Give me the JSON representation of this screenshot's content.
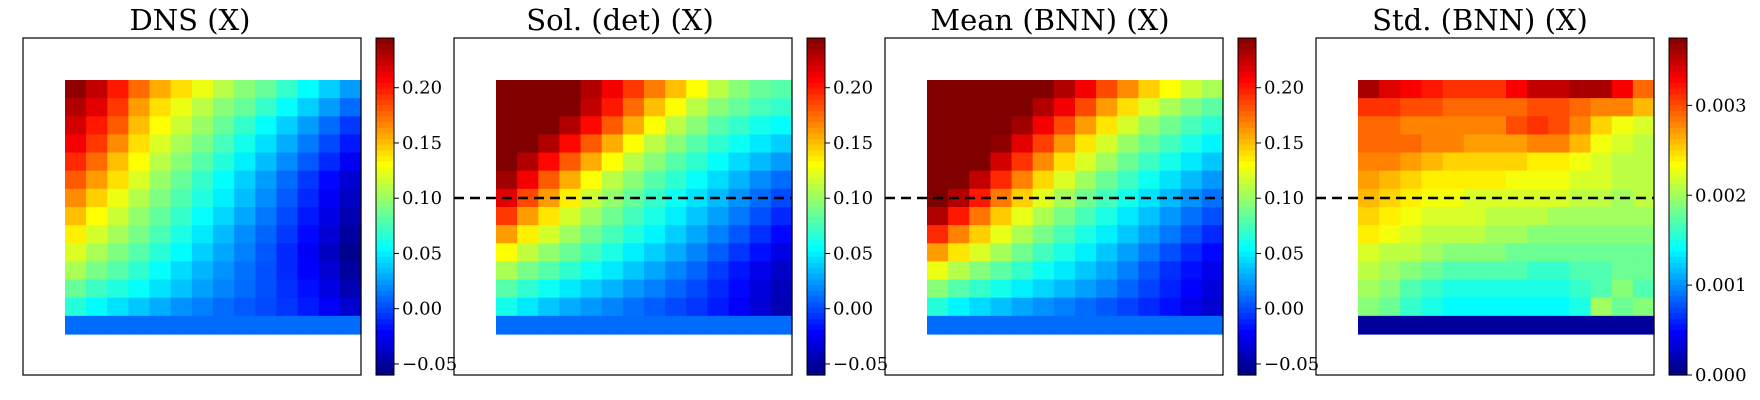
{
  "chart_data": [
    {
      "type": "heatmap",
      "title": "DNS (X)",
      "colormap": "jet",
      "colorbar": {
        "min": -0.06,
        "max": 0.245,
        "ticks": [
          -0.05,
          0.0,
          0.05,
          0.1,
          0.15,
          0.2
        ],
        "tick_labels": [
          "−0.05",
          "0.00",
          "0.05",
          "0.10",
          "0.15",
          "0.20"
        ]
      },
      "dashed_line": false,
      "grid": [
        [
          0.24,
          0.225,
          0.2,
          0.175,
          0.155,
          0.14,
          0.125,
          0.11,
          0.095,
          0.085,
          0.07,
          0.055,
          0.04,
          0.025
        ],
        [
          0.23,
          0.215,
          0.19,
          0.16,
          0.14,
          0.125,
          0.11,
          0.095,
          0.085,
          0.07,
          0.055,
          0.04,
          0.025,
          0.01
        ],
        [
          0.22,
          0.2,
          0.18,
          0.15,
          0.13,
          0.115,
          0.1,
          0.085,
          0.07,
          0.055,
          0.04,
          0.025,
          0.01,
          -0.005
        ],
        [
          0.21,
          0.19,
          0.165,
          0.14,
          0.12,
          0.105,
          0.09,
          0.075,
          0.06,
          0.045,
          0.03,
          0.015,
          0.0,
          -0.015
        ],
        [
          0.195,
          0.175,
          0.15,
          0.13,
          0.11,
          0.095,
          0.08,
          0.065,
          0.05,
          0.035,
          0.02,
          0.005,
          -0.01,
          -0.025
        ],
        [
          0.18,
          0.16,
          0.14,
          0.12,
          0.1,
          0.085,
          0.07,
          0.055,
          0.04,
          0.025,
          0.01,
          -0.005,
          -0.02,
          -0.035
        ],
        [
          0.165,
          0.145,
          0.125,
          0.108,
          0.092,
          0.078,
          0.064,
          0.05,
          0.035,
          0.02,
          0.005,
          -0.01,
          -0.025,
          -0.04
        ],
        [
          0.15,
          0.13,
          0.115,
          0.098,
          0.084,
          0.07,
          0.056,
          0.042,
          0.028,
          0.014,
          0.0,
          -0.015,
          -0.03,
          -0.045
        ],
        [
          0.135,
          0.118,
          0.104,
          0.09,
          0.076,
          0.062,
          0.048,
          0.034,
          0.02,
          0.008,
          -0.005,
          -0.02,
          -0.035,
          -0.05
        ],
        [
          0.12,
          0.105,
          0.092,
          0.08,
          0.066,
          0.054,
          0.04,
          0.028,
          0.016,
          0.004,
          -0.01,
          -0.025,
          -0.04,
          -0.055
        ],
        [
          0.105,
          0.09,
          0.08,
          0.068,
          0.056,
          0.044,
          0.032,
          0.022,
          0.012,
          0.002,
          -0.01,
          -0.022,
          -0.035,
          -0.05
        ],
        [
          0.085,
          0.072,
          0.064,
          0.056,
          0.046,
          0.036,
          0.026,
          0.018,
          0.01,
          0.002,
          -0.008,
          -0.018,
          -0.03,
          -0.045
        ],
        [
          0.065,
          0.054,
          0.046,
          0.038,
          0.03,
          0.022,
          0.016,
          0.01,
          0.005,
          0.0,
          -0.006,
          -0.014,
          -0.024,
          -0.036
        ],
        [
          0.01,
          0.01,
          0.01,
          0.01,
          0.01,
          0.01,
          0.01,
          0.01,
          0.01,
          0.01,
          0.01,
          0.01,
          0.01,
          0.01
        ]
      ]
    },
    {
      "type": "heatmap",
      "title": "Sol. (det) (X)",
      "colormap": "jet",
      "colorbar": {
        "min": -0.06,
        "max": 0.245,
        "ticks": [
          -0.05,
          0.0,
          0.05,
          0.1,
          0.15,
          0.2
        ],
        "tick_labels": [
          "−0.05",
          "0.00",
          "0.05",
          "0.10",
          "0.15",
          "0.20"
        ]
      },
      "dashed_line": true,
      "grid": [
        [
          0.245,
          0.245,
          0.245,
          0.245,
          0.23,
          0.21,
          0.19,
          0.17,
          0.15,
          0.13,
          0.11,
          0.095,
          0.085,
          0.08
        ],
        [
          0.245,
          0.245,
          0.245,
          0.245,
          0.225,
          0.2,
          0.175,
          0.15,
          0.13,
          0.11,
          0.095,
          0.085,
          0.075,
          0.07
        ],
        [
          0.245,
          0.245,
          0.245,
          0.23,
          0.205,
          0.18,
          0.155,
          0.13,
          0.11,
          0.095,
          0.08,
          0.07,
          0.06,
          0.055
        ],
        [
          0.245,
          0.245,
          0.23,
          0.205,
          0.18,
          0.155,
          0.13,
          0.11,
          0.095,
          0.08,
          0.068,
          0.058,
          0.048,
          0.04
        ],
        [
          0.245,
          0.23,
          0.205,
          0.18,
          0.155,
          0.13,
          0.11,
          0.095,
          0.08,
          0.068,
          0.056,
          0.044,
          0.034,
          0.025
        ],
        [
          0.235,
          0.21,
          0.18,
          0.155,
          0.13,
          0.11,
          0.095,
          0.08,
          0.068,
          0.056,
          0.044,
          0.032,
          0.02,
          0.01
        ],
        [
          0.215,
          0.185,
          0.16,
          0.135,
          0.115,
          0.098,
          0.084,
          0.07,
          0.058,
          0.046,
          0.034,
          0.022,
          0.01,
          0.0
        ],
        [
          0.19,
          0.16,
          0.138,
          0.118,
          0.102,
          0.088,
          0.074,
          0.062,
          0.05,
          0.038,
          0.026,
          0.014,
          0.002,
          -0.01
        ],
        [
          0.16,
          0.135,
          0.118,
          0.102,
          0.088,
          0.076,
          0.064,
          0.052,
          0.04,
          0.028,
          0.016,
          0.004,
          -0.008,
          -0.02
        ],
        [
          0.13,
          0.112,
          0.098,
          0.086,
          0.074,
          0.062,
          0.05,
          0.04,
          0.03,
          0.018,
          0.006,
          -0.006,
          -0.018,
          -0.03
        ],
        [
          0.105,
          0.09,
          0.08,
          0.068,
          0.058,
          0.048,
          0.038,
          0.028,
          0.018,
          0.008,
          -0.004,
          -0.016,
          -0.028,
          -0.038
        ],
        [
          0.08,
          0.068,
          0.058,
          0.048,
          0.04,
          0.032,
          0.024,
          0.016,
          0.008,
          0.0,
          -0.01,
          -0.02,
          -0.032,
          -0.042
        ],
        [
          0.06,
          0.048,
          0.038,
          0.03,
          0.024,
          0.018,
          0.012,
          0.006,
          0.0,
          -0.006,
          -0.014,
          -0.024,
          -0.034,
          -0.044
        ],
        [
          0.01,
          0.01,
          0.01,
          0.01,
          0.01,
          0.01,
          0.01,
          0.01,
          0.01,
          0.01,
          0.01,
          0.01,
          0.01,
          0.01
        ]
      ]
    },
    {
      "type": "heatmap",
      "title": "Mean (BNN) (X)",
      "colormap": "jet",
      "colorbar": {
        "min": -0.06,
        "max": 0.245,
        "ticks": [
          -0.05,
          0.0,
          0.05,
          0.1,
          0.15,
          0.2
        ],
        "tick_labels": [
          "−0.05",
          "0.00",
          "0.05",
          "0.10",
          "0.15",
          "0.20"
        ]
      },
      "dashed_line": true,
      "grid": [
        [
          0.245,
          0.245,
          0.245,
          0.245,
          0.245,
          0.245,
          0.23,
          0.21,
          0.185,
          0.165,
          0.145,
          0.13,
          0.115,
          0.105
        ],
        [
          0.245,
          0.245,
          0.245,
          0.245,
          0.245,
          0.23,
          0.21,
          0.185,
          0.16,
          0.14,
          0.12,
          0.105,
          0.092,
          0.082
        ],
        [
          0.245,
          0.245,
          0.245,
          0.245,
          0.235,
          0.21,
          0.185,
          0.16,
          0.138,
          0.118,
          0.1,
          0.088,
          0.076,
          0.066
        ],
        [
          0.245,
          0.245,
          0.245,
          0.24,
          0.215,
          0.188,
          0.162,
          0.138,
          0.118,
          0.1,
          0.086,
          0.074,
          0.062,
          0.052
        ],
        [
          0.245,
          0.245,
          0.245,
          0.22,
          0.192,
          0.165,
          0.14,
          0.12,
          0.102,
          0.086,
          0.072,
          0.06,
          0.048,
          0.038
        ],
        [
          0.245,
          0.245,
          0.225,
          0.195,
          0.168,
          0.142,
          0.12,
          0.102,
          0.086,
          0.072,
          0.058,
          0.046,
          0.034,
          0.024
        ],
        [
          0.245,
          0.23,
          0.2,
          0.17,
          0.145,
          0.122,
          0.104,
          0.088,
          0.074,
          0.06,
          0.046,
          0.034,
          0.022,
          0.012
        ],
        [
          0.23,
          0.2,
          0.172,
          0.146,
          0.124,
          0.106,
          0.09,
          0.076,
          0.062,
          0.048,
          0.036,
          0.024,
          0.012,
          0.002
        ],
        [
          0.195,
          0.168,
          0.145,
          0.124,
          0.106,
          0.09,
          0.076,
          0.062,
          0.05,
          0.038,
          0.026,
          0.014,
          0.002,
          -0.01
        ],
        [
          0.16,
          0.138,
          0.12,
          0.104,
          0.088,
          0.074,
          0.062,
          0.05,
          0.038,
          0.026,
          0.014,
          0.002,
          -0.01,
          -0.02
        ],
        [
          0.125,
          0.108,
          0.094,
          0.082,
          0.07,
          0.058,
          0.048,
          0.038,
          0.028,
          0.016,
          0.004,
          -0.008,
          -0.018,
          -0.028
        ],
        [
          0.095,
          0.08,
          0.07,
          0.06,
          0.05,
          0.042,
          0.034,
          0.026,
          0.018,
          0.008,
          -0.002,
          -0.012,
          -0.022,
          -0.032
        ],
        [
          0.065,
          0.052,
          0.044,
          0.036,
          0.028,
          0.022,
          0.016,
          0.01,
          0.004,
          -0.002,
          -0.01,
          -0.018,
          -0.028,
          -0.036
        ],
        [
          0.01,
          0.01,
          0.01,
          0.01,
          0.01,
          0.01,
          0.01,
          0.01,
          0.01,
          0.01,
          0.01,
          0.01,
          0.01,
          0.01
        ]
      ]
    },
    {
      "type": "heatmap",
      "title": "Std. (BNN) (X)",
      "colormap": "jet",
      "colorbar": {
        "min": 0.0,
        "max": 0.00375,
        "ticks": [
          0.0,
          0.001,
          0.002,
          0.003
        ],
        "tick_labels": [
          "0.000",
          "0.001",
          "0.002",
          "0.003"
        ]
      },
      "dashed_line": true,
      "grid": [
        [
          0.0036,
          0.0034,
          0.0033,
          0.0032,
          0.0031,
          0.0031,
          0.0031,
          0.0033,
          0.0035,
          0.0035,
          0.0036,
          0.0036,
          0.0033,
          0.0029
        ],
        [
          0.0031,
          0.0031,
          0.003,
          0.003,
          0.0029,
          0.0029,
          0.0029,
          0.0029,
          0.003,
          0.003,
          0.0029,
          0.0028,
          0.0028,
          0.0026
        ],
        [
          0.0029,
          0.0029,
          0.0028,
          0.0028,
          0.0028,
          0.0028,
          0.0028,
          0.003,
          0.0031,
          0.003,
          0.0028,
          0.0025,
          0.0023,
          0.0022
        ],
        [
          0.0029,
          0.0029,
          0.0029,
          0.0028,
          0.0028,
          0.0027,
          0.0027,
          0.0027,
          0.0028,
          0.0028,
          0.0026,
          0.0023,
          0.0022,
          0.0021
        ],
        [
          0.0028,
          0.0028,
          0.0027,
          0.0026,
          0.0025,
          0.0025,
          0.0025,
          0.0025,
          0.0024,
          0.0024,
          0.0023,
          0.0022,
          0.0021,
          0.0021
        ],
        [
          0.0027,
          0.0026,
          0.0025,
          0.0024,
          0.0024,
          0.0024,
          0.0024,
          0.0023,
          0.0023,
          0.0023,
          0.0022,
          0.0022,
          0.0021,
          0.0021
        ],
        [
          0.0026,
          0.0025,
          0.0024,
          0.0023,
          0.0023,
          0.0022,
          0.0022,
          0.0022,
          0.0022,
          0.0022,
          0.0021,
          0.0021,
          0.002,
          0.0021
        ],
        [
          0.0025,
          0.0024,
          0.0023,
          0.0022,
          0.0022,
          0.0022,
          0.0021,
          0.0021,
          0.0021,
          0.002,
          0.002,
          0.002,
          0.002,
          0.002
        ],
        [
          0.0024,
          0.0023,
          0.0022,
          0.0021,
          0.0021,
          0.0021,
          0.002,
          0.002,
          0.0019,
          0.0019,
          0.0019,
          0.0019,
          0.0019,
          0.0019
        ],
        [
          0.0022,
          0.0021,
          0.0021,
          0.002,
          0.0019,
          0.0019,
          0.0019,
          0.0018,
          0.0018,
          0.0018,
          0.0018,
          0.0018,
          0.0018,
          0.0018
        ],
        [
          0.0021,
          0.002,
          0.0019,
          0.0018,
          0.0017,
          0.0017,
          0.0017,
          0.0017,
          0.0016,
          0.0016,
          0.0017,
          0.0017,
          0.0018,
          0.0018
        ],
        [
          0.002,
          0.0019,
          0.0017,
          0.0016,
          0.0015,
          0.0015,
          0.0015,
          0.0015,
          0.0015,
          0.0015,
          0.0016,
          0.0017,
          0.0019,
          0.0017
        ],
        [
          0.0019,
          0.0018,
          0.0016,
          0.0015,
          0.0014,
          0.0014,
          0.0014,
          0.0014,
          0.0014,
          0.0014,
          0.0015,
          0.002,
          0.0018,
          0.0019
        ],
        [
          0.0001,
          0.0001,
          0.0001,
          0.0001,
          0.0001,
          0.0001,
          0.0001,
          0.0001,
          0.0001,
          0.0001,
          0.0001,
          0.0001,
          0.0001,
          0.0001
        ]
      ]
    }
  ]
}
